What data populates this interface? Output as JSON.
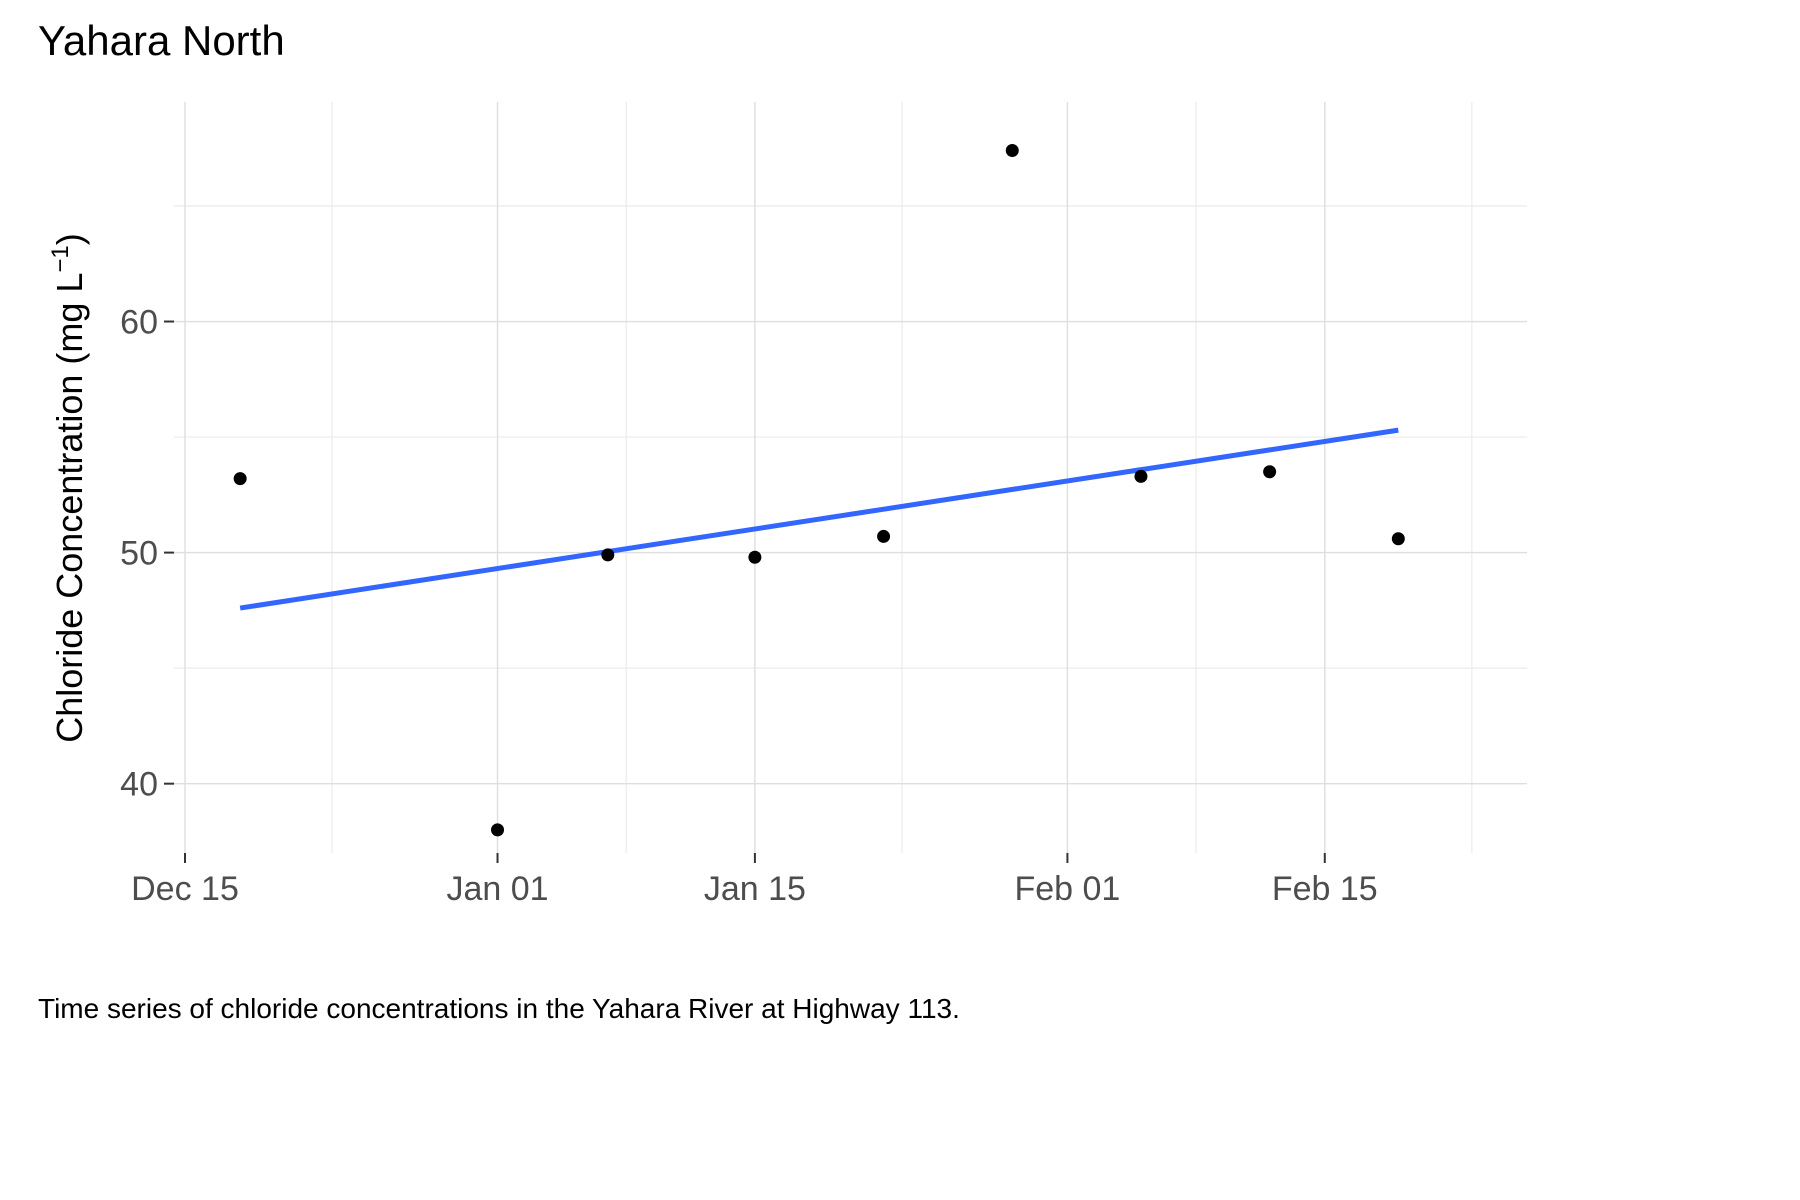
{
  "chart_data": {
    "type": "scatter",
    "title": "Yahara North",
    "xlabel": "",
    "ylabel": "Chloride Concentration (mg L",
    "ylabel_superscript": "−1",
    "ylabel_close": ")",
    "caption": "Time series of chloride concentrations in the Yahara River at Highway 113.",
    "x_ticks": [
      "Dec 15",
      "Jan 01",
      "Jan 15",
      "Feb 01",
      "Feb 15"
    ],
    "x_tick_dates": [
      "2021-12-15",
      "2022-01-01",
      "2022-01-15",
      "2022-02-01",
      "2022-02-15"
    ],
    "x_minor_dates": [
      "2021-12-23",
      "2022-01-08",
      "2022-01-23",
      "2022-02-08",
      "2022-02-23"
    ],
    "xlim": [
      "2021-12-15",
      "2022-02-26"
    ],
    "y_ticks": [
      40,
      50,
      60
    ],
    "y_minor": [
      45,
      55,
      65
    ],
    "ylim": [
      37,
      69.5
    ],
    "grid": true,
    "points": [
      {
        "x": "2021-12-18",
        "y": 53.2
      },
      {
        "x": "2022-01-01",
        "y": 38.0
      },
      {
        "x": "2022-01-07",
        "y": 49.9
      },
      {
        "x": "2022-01-15",
        "y": 49.8
      },
      {
        "x": "2022-01-22",
        "y": 50.7
      },
      {
        "x": "2022-01-29",
        "y": 67.4
      },
      {
        "x": "2022-02-05",
        "y": 53.3
      },
      {
        "x": "2022-02-12",
        "y": 53.5
      },
      {
        "x": "2022-02-19",
        "y": 50.6
      }
    ],
    "trend_line": {
      "x": [
        "2021-12-18",
        "2022-02-19"
      ],
      "y": [
        47.6,
        55.3
      ],
      "color": "#3366ff"
    },
    "point_color": "#000000"
  }
}
